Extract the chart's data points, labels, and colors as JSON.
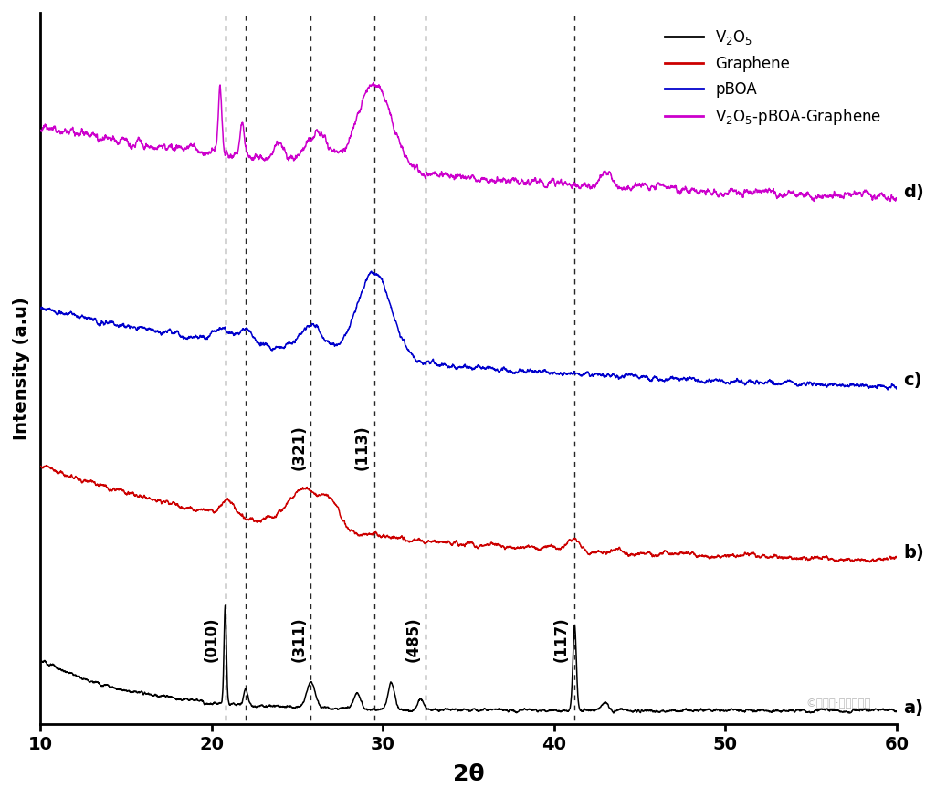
{
  "xlabel": "2θ",
  "ylabel": "Intensity (a.u)",
  "xlim": [
    10,
    60
  ],
  "xticks": [
    10,
    20,
    30,
    40,
    50,
    60
  ],
  "dashed_lines_x": [
    20.8,
    22.0,
    25.8,
    29.5,
    32.5,
    41.2
  ],
  "colors": {
    "v2o5": "#000000",
    "graphene": "#cc0000",
    "pboa": "#0000cc",
    "v2o5pboagraphene": "#cc00cc"
  },
  "legend_labels": {
    "v2o5": "V$_2$O$_5$",
    "graphene": "Graphene",
    "pboa": "pBOA",
    "v2o5pboagraphene": "V$_2$O$_5$-pBOA-Graphene"
  },
  "offsets": {
    "v2o5": 0.0,
    "graphene": 0.28,
    "pboa": 0.6,
    "v2o5pboagraphene": 0.95
  },
  "scales": {
    "v2o5": 0.2,
    "graphene": 0.18,
    "pboa": 0.22,
    "v2o5pboagraphene": 0.22
  },
  "background_color": "#ffffff",
  "figsize": [
    10.25,
    8.74
  ],
  "dpi": 100
}
